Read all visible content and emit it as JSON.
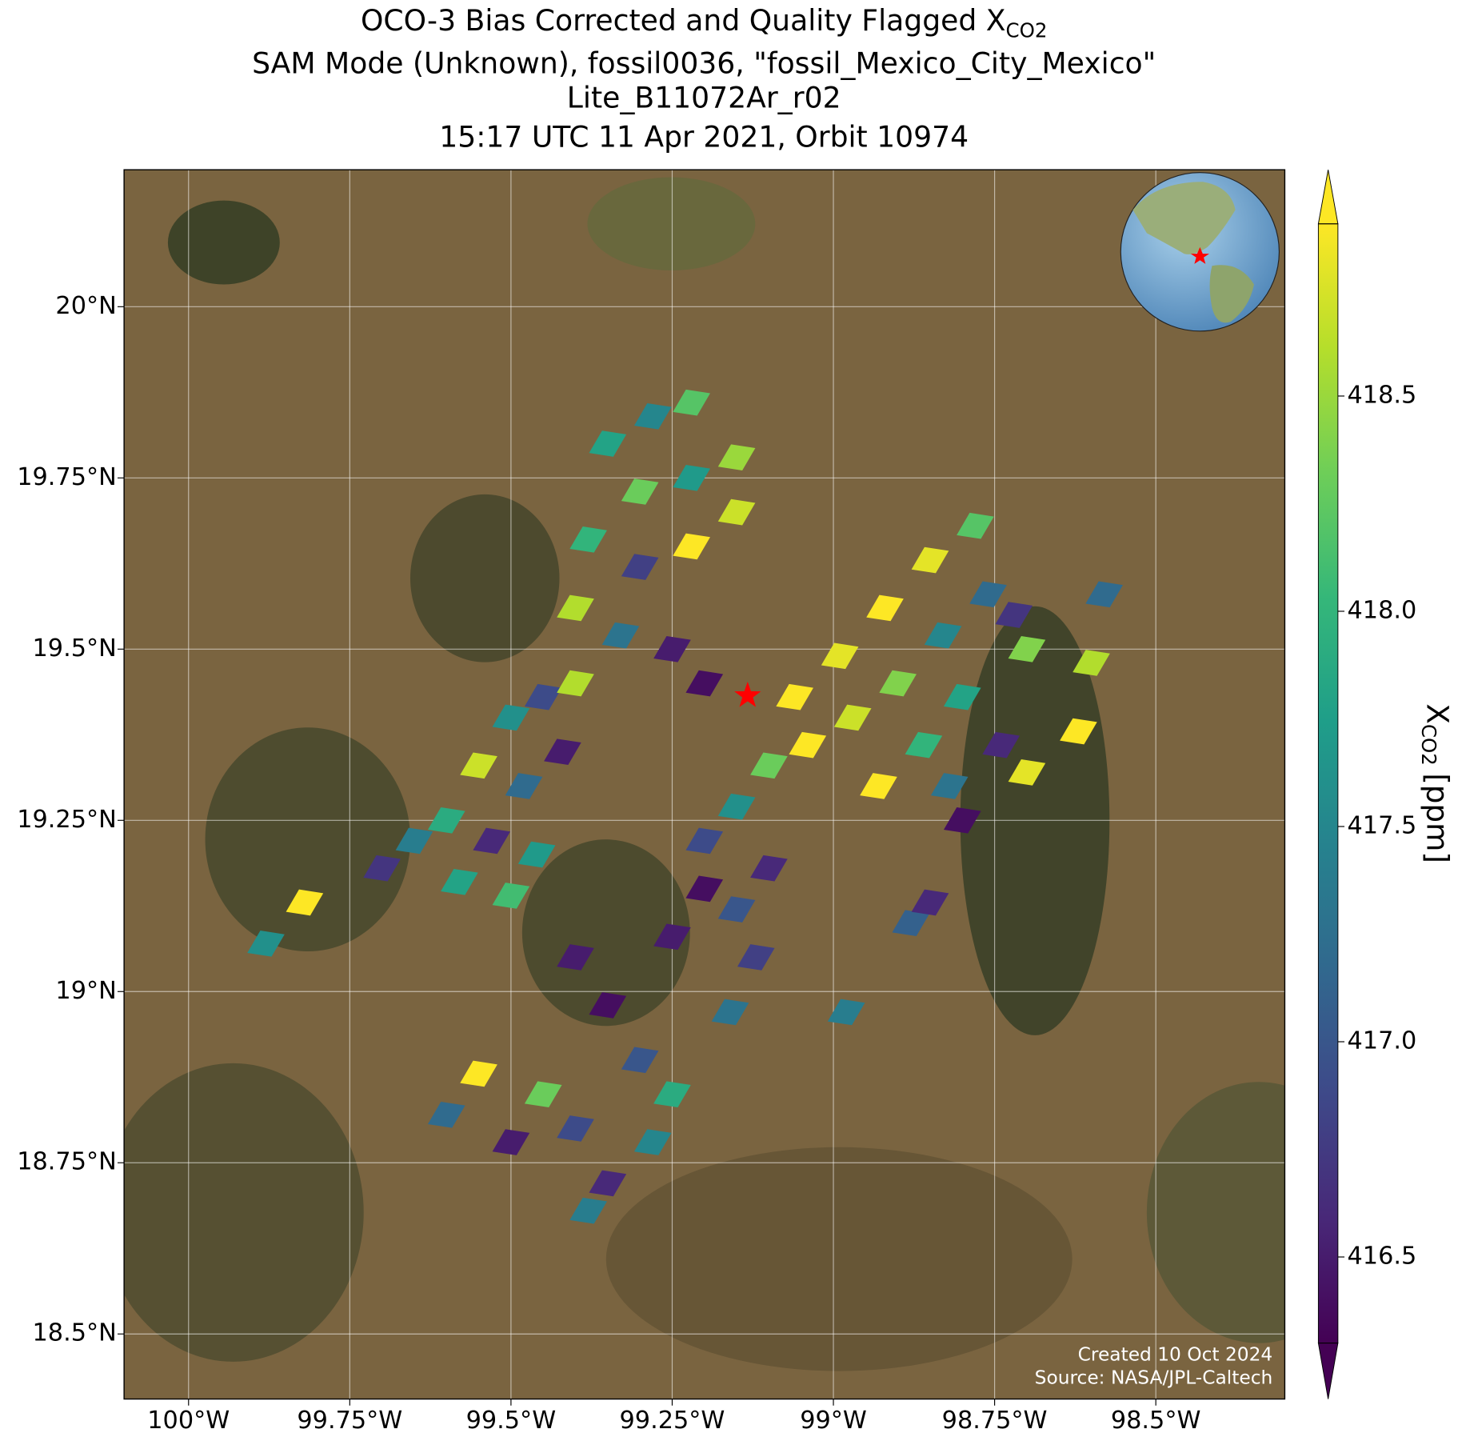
{
  "chart_data": {
    "type": "map",
    "title": {
      "text": "OCO-3 Bias Corrected and Quality Flagged X",
      "subscript": "CO2"
    },
    "subtitle": [
      "SAM Mode (Unknown), fossil0036, \"fossil_Mexico_City_Mexico\"",
      "Lite_B11072Ar_r02",
      "15:17 UTC 11 Apr 2021, Orbit 10974"
    ],
    "xlim": [
      -100.1,
      -98.3
    ],
    "ylim": [
      18.405,
      20.2
    ],
    "xticks": [
      {
        "value": -100,
        "label": "100°W"
      },
      {
        "value": -99.75,
        "label": "99.75°W"
      },
      {
        "value": -99.5,
        "label": "99.5°W"
      },
      {
        "value": -99.25,
        "label": "99.25°W"
      },
      {
        "value": -99,
        "label": "99°W"
      },
      {
        "value": -98.75,
        "label": "98.75°W"
      },
      {
        "value": -98.5,
        "label": "98.5°W"
      }
    ],
    "yticks": [
      {
        "value": 20,
        "label": "20°N"
      },
      {
        "value": 19.75,
        "label": "19.75°N"
      },
      {
        "value": 19.5,
        "label": "19.5°N"
      },
      {
        "value": 19.25,
        "label": "19.25°N"
      },
      {
        "value": 19,
        "label": "19°N"
      },
      {
        "value": 18.75,
        "label": "18.75°N"
      },
      {
        "value": 18.5,
        "label": "18.5°N"
      }
    ],
    "grid": true,
    "target": {
      "lon": -99.133,
      "lat": 19.432,
      "color": "#ff0000"
    },
    "soundings": {
      "lon": [
        -99.06,
        -99.04,
        -98.99,
        -98.97,
        -98.92,
        -98.9,
        -98.85,
        -98.83,
        -98.78,
        -98.76,
        -98.72,
        -98.8,
        -98.86,
        -98.93,
        -99.1,
        -99.15,
        -99.2,
        -98.74,
        -98.82,
        -98.7,
        -99.35,
        -99.28,
        -99.22,
        -99.3,
        -99.22,
        -99.15,
        -99.38,
        -99.3,
        -99.22,
        -99.15,
        -99.4,
        -99.33,
        -99.25,
        -99.2,
        -99.5,
        -99.45,
        -99.4,
        -99.55,
        -99.48,
        -99.42,
        -99.6,
        -99.53,
        -99.46,
        -99.65,
        -99.58,
        -99.5,
        -99.7,
        -99.82,
        -99.88,
        -99.2,
        -99.15,
        -99.1,
        -99.25,
        -99.12,
        -99.35,
        -99.4,
        -99.3,
        -99.25,
        -99.55,
        -99.6,
        -99.5,
        -99.45,
        -99.4,
        -99.35,
        -99.38,
        -99.28,
        -98.88,
        -98.85,
        -98.7,
        -98.62,
        -98.6,
        -98.58,
        -98.8,
        -98.98,
        -99.16
      ],
      "lat": [
        19.43,
        19.36,
        19.49,
        19.4,
        19.56,
        19.45,
        19.63,
        19.52,
        19.68,
        19.58,
        19.55,
        19.43,
        19.36,
        19.3,
        19.33,
        19.27,
        19.22,
        19.36,
        19.3,
        19.5,
        19.8,
        19.84,
        19.86,
        19.73,
        19.75,
        19.78,
        19.66,
        19.62,
        19.65,
        19.7,
        19.56,
        19.52,
        19.5,
        19.45,
        19.4,
        19.43,
        19.45,
        19.33,
        19.3,
        19.35,
        19.25,
        19.22,
        19.2,
        19.22,
        19.16,
        19.14,
        19.18,
        19.13,
        19.07,
        19.15,
        19.12,
        19.18,
        19.08,
        19.05,
        18.98,
        19.05,
        18.9,
        18.85,
        18.88,
        18.82,
        18.78,
        18.85,
        18.8,
        18.72,
        18.68,
        18.78,
        19.1,
        19.13,
        19.32,
        19.38,
        19.48,
        19.58,
        19.25,
        18.97,
        18.97
      ],
      "values": [
        418.9,
        418.9,
        418.8,
        418.7,
        418.9,
        418.4,
        418.8,
        417.5,
        418.2,
        417.2,
        416.7,
        417.8,
        418.0,
        418.9,
        418.3,
        417.6,
        416.9,
        416.6,
        417.3,
        418.4,
        417.8,
        417.5,
        418.2,
        418.3,
        417.7,
        418.5,
        418.0,
        416.8,
        418.9,
        418.7,
        418.6,
        417.3,
        416.5,
        416.4,
        417.6,
        416.9,
        418.6,
        418.7,
        417.2,
        416.5,
        417.9,
        416.6,
        417.7,
        417.4,
        417.8,
        418.1,
        416.7,
        418.9,
        417.6,
        416.4,
        417.0,
        416.6,
        416.5,
        416.8,
        416.4,
        416.5,
        417.0,
        417.9,
        418.9,
        417.2,
        416.5,
        418.3,
        416.9,
        416.6,
        417.4,
        417.5,
        417.1,
        416.6,
        418.8,
        418.9,
        418.6,
        417.2,
        416.4,
        417.4,
        417.3
      ]
    },
    "colorbar": {
      "label": "X",
      "label_subscript": "CO2",
      "label_unit": "[ppm]",
      "lim": [
        416.3,
        418.9
      ],
      "ticks": [
        {
          "value": 416.5,
          "label": "416.5"
        },
        {
          "value": 417,
          "label": "417.0"
        },
        417.5,
        {
          "value": 418,
          "label": "418.0"
        },
        418.5
      ],
      "colormap": [
        "#440154",
        "#482878",
        "#3e4989",
        "#31688e",
        "#26828e",
        "#1f9e89",
        "#35b779",
        "#6ece58",
        "#b5de2b",
        "#fde725"
      ]
    },
    "footer": [
      "Created 10 Oct 2024",
      "Source: NASA/JPL-Caltech"
    ]
  }
}
